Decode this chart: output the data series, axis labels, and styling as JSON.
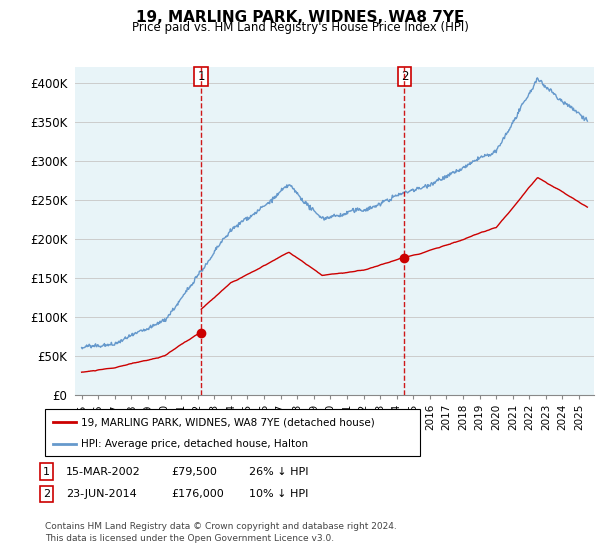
{
  "title": "19, MARLING PARK, WIDNES, WA8 7YE",
  "subtitle": "Price paid vs. HM Land Registry's House Price Index (HPI)",
  "ylabel_ticks": [
    "£0",
    "£50K",
    "£100K",
    "£150K",
    "£200K",
    "£250K",
    "£300K",
    "£350K",
    "£400K"
  ],
  "ytick_values": [
    0,
    50000,
    100000,
    150000,
    200000,
    250000,
    300000,
    350000,
    400000
  ],
  "ylim": [
    0,
    420000
  ],
  "sale1_x": 2002.21,
  "sale1_price": 79500,
  "sale2_x": 2014.47,
  "sale2_price": 176000,
  "legend_line1": "19, MARLING PARK, WIDNES, WA8 7YE (detached house)",
  "legend_line2": "HPI: Average price, detached house, Halton",
  "row1_date": "15-MAR-2002",
  "row1_price": "£79,500",
  "row1_hpi": "26% ↓ HPI",
  "row2_date": "23-JUN-2014",
  "row2_price": "£176,000",
  "row2_hpi": "10% ↓ HPI",
  "footnote": "Contains HM Land Registry data © Crown copyright and database right 2024.\nThis data is licensed under the Open Government Licence v3.0.",
  "sale_color": "#cc0000",
  "hpi_color": "#6699cc",
  "vline_color": "#cc0000",
  "background_color": "#ffffff",
  "grid_color": "#cccccc",
  "xlim_left": 1994.6,
  "xlim_right": 2025.9
}
